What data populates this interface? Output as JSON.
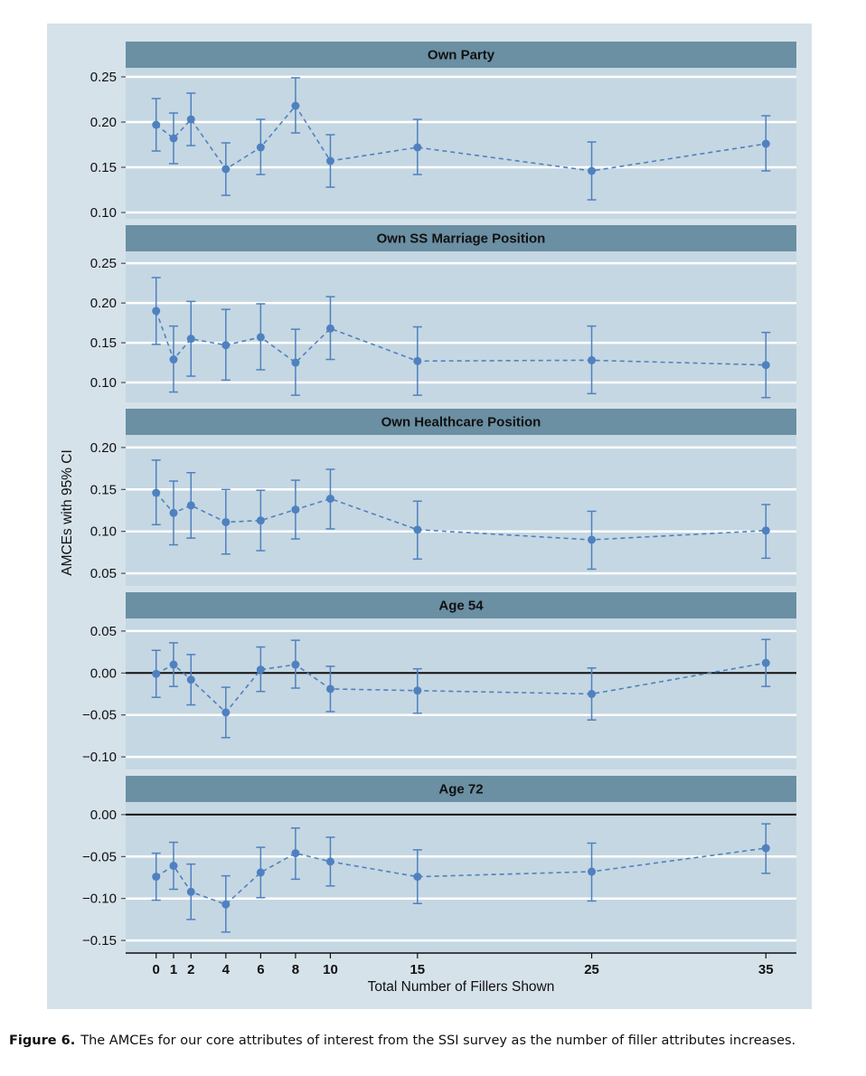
{
  "chart_data": {
    "type": "line",
    "xlabel": "Total Number of Fillers Shown",
    "ylabel": "AMCEs with 95% CI",
    "x": [
      0,
      1,
      2,
      4,
      6,
      8,
      10,
      15,
      25,
      35
    ],
    "x_ticks": [
      0,
      1,
      2,
      4,
      6,
      8,
      10,
      15,
      25,
      35
    ],
    "x_tick_labels": [
      "0",
      "1",
      "2",
      "4",
      "6",
      "8",
      "10",
      "15",
      "25",
      "35"
    ],
    "xlim": [
      -1.75,
      36.75
    ],
    "colors": {
      "point": "#4f81c0",
      "strip": "#6b8fa3",
      "panel_bg": "#c5d7e2",
      "figure_bg": "#d6e2ea",
      "gridline": "#ffffff",
      "zero_line": "#111111"
    },
    "facets": [
      {
        "title": "Own Party",
        "ylim": [
          0.093,
          0.26
        ],
        "y_ticks": [
          0.1,
          0.15,
          0.2,
          0.25
        ],
        "y_tick_labels": [
          "0.10",
          "0.15",
          "0.20",
          "0.25"
        ],
        "values": [
          0.197,
          0.182,
          0.203,
          0.148,
          0.172,
          0.218,
          0.157,
          0.172,
          0.146,
          0.176
        ],
        "ci_low": [
          0.168,
          0.154,
          0.174,
          0.119,
          0.142,
          0.188,
          0.128,
          0.142,
          0.114,
          0.146
        ],
        "ci_high": [
          0.226,
          0.21,
          0.232,
          0.177,
          0.203,
          0.249,
          0.186,
          0.203,
          0.178,
          0.207
        ]
      },
      {
        "title": "Own SS Marriage Position",
        "ylim": [
          0.075,
          0.265
        ],
        "y_ticks": [
          0.1,
          0.15,
          0.2,
          0.25
        ],
        "y_tick_labels": [
          "0.10",
          "0.15",
          "0.20",
          "0.25"
        ],
        "values": [
          0.19,
          0.129,
          0.155,
          0.147,
          0.157,
          0.125,
          0.168,
          0.127,
          0.128,
          0.122
        ],
        "ci_low": [
          0.148,
          0.088,
          0.108,
          0.103,
          0.116,
          0.084,
          0.129,
          0.084,
          0.086,
          0.081
        ],
        "ci_high": [
          0.232,
          0.171,
          0.202,
          0.192,
          0.199,
          0.167,
          0.208,
          0.17,
          0.171,
          0.163
        ]
      },
      {
        "title": "Own Healthcare Position",
        "ylim": [
          0.035,
          0.215
        ],
        "y_ticks": [
          0.05,
          0.1,
          0.15,
          0.2
        ],
        "y_tick_labels": [
          "0.05",
          "0.10",
          "0.15",
          "0.20"
        ],
        "values": [
          0.146,
          0.122,
          0.131,
          0.111,
          0.113,
          0.126,
          0.139,
          0.102,
          0.09,
          0.101
        ],
        "ci_low": [
          0.108,
          0.084,
          0.092,
          0.073,
          0.077,
          0.091,
          0.103,
          0.067,
          0.055,
          0.068
        ],
        "ci_high": [
          0.185,
          0.16,
          0.17,
          0.15,
          0.149,
          0.161,
          0.174,
          0.136,
          0.124,
          0.132
        ]
      },
      {
        "title": "Age 54",
        "ylim": [
          -0.115,
          0.065
        ],
        "y_ticks": [
          -0.1,
          -0.05,
          0.0,
          0.05
        ],
        "y_tick_labels": [
          "−0.10",
          "−0.05",
          "0.00",
          "0.05"
        ],
        "values": [
          -0.001,
          0.01,
          -0.008,
          -0.047,
          0.004,
          0.01,
          -0.019,
          -0.021,
          -0.025,
          0.012
        ],
        "ci_low": [
          -0.029,
          -0.016,
          -0.038,
          -0.077,
          -0.022,
          -0.018,
          -0.046,
          -0.048,
          -0.056,
          -0.016
        ],
        "ci_high": [
          0.027,
          0.036,
          0.022,
          -0.017,
          0.031,
          0.039,
          0.008,
          0.005,
          0.006,
          0.04
        ],
        "zero_line": true
      },
      {
        "title": "Age 72",
        "ylim": [
          -0.165,
          0.015
        ],
        "y_ticks": [
          -0.15,
          -0.1,
          -0.05,
          0.0
        ],
        "y_tick_labels": [
          "−0.15",
          "−0.10",
          "−0.05",
          "0.00"
        ],
        "values": [
          -0.074,
          -0.061,
          -0.092,
          -0.107,
          -0.069,
          -0.046,
          -0.056,
          -0.074,
          -0.068,
          -0.04
        ],
        "ci_low": [
          -0.102,
          -0.089,
          -0.125,
          -0.14,
          -0.099,
          -0.077,
          -0.085,
          -0.106,
          -0.103,
          -0.07
        ],
        "ci_high": [
          -0.046,
          -0.033,
          -0.059,
          -0.073,
          -0.039,
          -0.016,
          -0.027,
          -0.042,
          -0.034,
          -0.011
        ],
        "zero_line": true
      }
    ]
  },
  "caption": {
    "label": "Figure 6.",
    "text": "The AMCEs for our core attributes of interest from the SSI survey as the number of filler attributes increases."
  }
}
